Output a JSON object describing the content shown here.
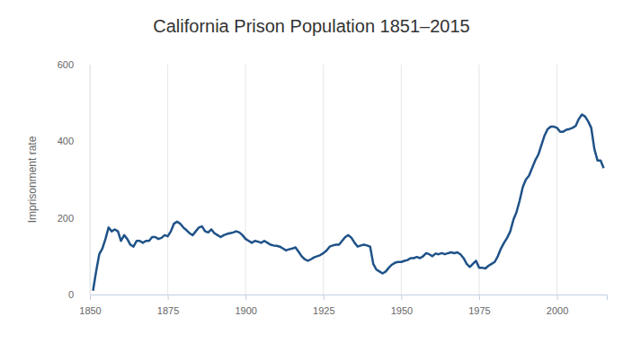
{
  "chart_data": {
    "type": "line",
    "title": "California Prison Population 1851–2015",
    "y_label": "Imprisonment rate",
    "color": "#1f5288",
    "grid": true,
    "xlim": [
      1850,
      2016
    ],
    "xticks": [
      1850,
      1875,
      1900,
      1925,
      1950,
      1975,
      2000
    ],
    "ylim": [
      0,
      600
    ],
    "yticks": [
      0,
      200,
      400,
      600
    ],
    "x": [
      1851,
      1852,
      1853,
      1854,
      1855,
      1856,
      1857,
      1858,
      1859,
      1860,
      1861,
      1862,
      1863,
      1864,
      1865,
      1866,
      1867,
      1868,
      1869,
      1870,
      1871,
      1872,
      1873,
      1874,
      1875,
      1876,
      1877,
      1878,
      1879,
      1880,
      1881,
      1882,
      1883,
      1884,
      1885,
      1886,
      1887,
      1888,
      1889,
      1890,
      1891,
      1892,
      1893,
      1894,
      1895,
      1896,
      1897,
      1898,
      1899,
      1900,
      1901,
      1902,
      1903,
      1904,
      1905,
      1906,
      1907,
      1908,
      1909,
      1910,
      1911,
      1912,
      1913,
      1914,
      1915,
      1916,
      1917,
      1918,
      1919,
      1920,
      1921,
      1922,
      1923,
      1924,
      1925,
      1926,
      1927,
      1928,
      1929,
      1930,
      1931,
      1932,
      1933,
      1934,
      1935,
      1936,
      1937,
      1938,
      1939,
      1940,
      1941,
      1942,
      1943,
      1944,
      1945,
      1946,
      1947,
      1948,
      1949,
      1950,
      1951,
      1952,
      1953,
      1954,
      1955,
      1956,
      1957,
      1958,
      1959,
      1960,
      1961,
      1962,
      1963,
      1964,
      1965,
      1966,
      1967,
      1968,
      1969,
      1970,
      1971,
      1972,
      1973,
      1974,
      1975,
      1976,
      1977,
      1978,
      1979,
      1980,
      1981,
      1982,
      1983,
      1984,
      1985,
      1986,
      1987,
      1988,
      1989,
      1990,
      1991,
      1992,
      1993,
      1994,
      1995,
      1996,
      1997,
      1998,
      1999,
      2000,
      2001,
      2002,
      2003,
      2004,
      2005,
      2006,
      2007,
      2008,
      2009,
      2010,
      2011,
      2012,
      2013,
      2014,
      2015
    ],
    "values": [
      10,
      60,
      105,
      120,
      145,
      175,
      165,
      170,
      165,
      140,
      155,
      145,
      130,
      125,
      140,
      140,
      135,
      140,
      140,
      150,
      150,
      145,
      148,
      155,
      152,
      165,
      185,
      190,
      185,
      175,
      168,
      160,
      155,
      165,
      175,
      178,
      165,
      162,
      170,
      160,
      155,
      150,
      155,
      158,
      160,
      162,
      165,
      162,
      155,
      145,
      140,
      135,
      140,
      138,
      135,
      140,
      135,
      130,
      128,
      127,
      125,
      120,
      115,
      118,
      120,
      123,
      112,
      100,
      92,
      88,
      92,
      97,
      100,
      103,
      108,
      115,
      125,
      128,
      130,
      130,
      140,
      150,
      155,
      148,
      135,
      125,
      128,
      130,
      128,
      125,
      80,
      65,
      60,
      55,
      60,
      70,
      78,
      83,
      85,
      85,
      88,
      90,
      95,
      95,
      98,
      95,
      100,
      108,
      105,
      100,
      107,
      105,
      108,
      105,
      108,
      110,
      108,
      110,
      105,
      95,
      80,
      72,
      80,
      88,
      70,
      70,
      68,
      75,
      80,
      85,
      100,
      120,
      135,
      148,
      165,
      195,
      215,
      245,
      280,
      300,
      310,
      330,
      350,
      365,
      390,
      415,
      432,
      438,
      438,
      435,
      425,
      425,
      430,
      432,
      435,
      440,
      458,
      470,
      465,
      452,
      435,
      380,
      350,
      350,
      330
    ]
  }
}
